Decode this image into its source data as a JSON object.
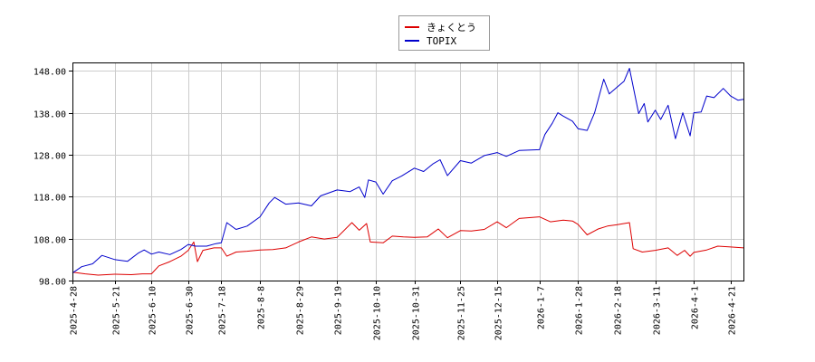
{
  "chart_data": {
    "type": "line",
    "title": "",
    "xlabel": "",
    "ylabel": "",
    "ylim": [
      98.0,
      150.0
    ],
    "y_ticks": [
      "98.00",
      "108.00",
      "118.00",
      "128.00",
      "138.00",
      "148.00"
    ],
    "x_ticks": [
      "2025-4-28",
      "2025-5-21",
      "2025-6-10",
      "2025-6-30",
      "2025-7-18",
      "2025-8-8",
      "2025-8-29",
      "2025-9-19",
      "2025-10-10",
      "2025-10-31",
      "2025-11-25",
      "2025-12-15",
      "2026-1-7",
      "2026-1-28",
      "2026-2-18",
      "2026-3-11",
      "2026-4-1",
      "2026-4-21"
    ],
    "x_range": [
      "2025-4-28",
      "2026-4-28"
    ],
    "grid": true,
    "legend_position": "top-center",
    "series": [
      {
        "name": "きょくとう",
        "color": "#dd0000",
        "points": [
          [
            "2025-4-28",
            100.0
          ],
          [
            "2025-5-5",
            99.6
          ],
          [
            "2025-5-12",
            99.3
          ],
          [
            "2025-5-21",
            99.5
          ],
          [
            "2025-5-30",
            99.4
          ],
          [
            "2025-6-5",
            99.6
          ],
          [
            "2025-6-10",
            99.6
          ],
          [
            "2025-6-14",
            101.5
          ],
          [
            "2025-6-20",
            102.5
          ],
          [
            "2025-6-26",
            103.8
          ],
          [
            "2025-6-30",
            105.2
          ],
          [
            "2025-7-3",
            107.2
          ],
          [
            "2025-7-5",
            102.5
          ],
          [
            "2025-7-8",
            105.2
          ],
          [
            "2025-7-14",
            105.8
          ],
          [
            "2025-7-18",
            105.8
          ],
          [
            "2025-7-21",
            103.8
          ],
          [
            "2025-7-26",
            104.8
          ],
          [
            "2025-8-1",
            105.0
          ],
          [
            "2025-8-8",
            105.3
          ],
          [
            "2025-8-15",
            105.4
          ],
          [
            "2025-8-22",
            105.8
          ],
          [
            "2025-8-29",
            107.2
          ],
          [
            "2025-9-5",
            108.4
          ],
          [
            "2025-9-12",
            107.9
          ],
          [
            "2025-9-19",
            108.3
          ],
          [
            "2025-9-27",
            111.8
          ],
          [
            "2025-10-1",
            110.0
          ],
          [
            "2025-10-5",
            111.6
          ],
          [
            "2025-10-7",
            107.2
          ],
          [
            "2025-10-14",
            107.0
          ],
          [
            "2025-10-19",
            108.6
          ],
          [
            "2025-10-25",
            108.4
          ],
          [
            "2025-10-31",
            108.3
          ],
          [
            "2025-11-7",
            108.4
          ],
          [
            "2025-11-13",
            110.3
          ],
          [
            "2025-11-18",
            108.2
          ],
          [
            "2025-11-25",
            109.9
          ],
          [
            "2025-12-1",
            109.8
          ],
          [
            "2025-12-8",
            110.2
          ],
          [
            "2025-12-15",
            112.0
          ],
          [
            "2025-12-20",
            110.6
          ],
          [
            "2025-12-27",
            112.8
          ],
          [
            "2026-1-7",
            113.2
          ],
          [
            "2026-1-13",
            112.0
          ],
          [
            "2026-1-20",
            112.4
          ],
          [
            "2026-1-25",
            112.2
          ],
          [
            "2026-1-28",
            111.4
          ],
          [
            "2026-2-2",
            108.9
          ],
          [
            "2026-2-8",
            110.3
          ],
          [
            "2026-2-13",
            111.0
          ],
          [
            "2026-2-18",
            111.3
          ],
          [
            "2026-2-25",
            111.8
          ],
          [
            "2026-2-27",
            105.6
          ],
          [
            "2026-3-4",
            104.8
          ],
          [
            "2026-3-11",
            105.2
          ],
          [
            "2026-3-18",
            105.8
          ],
          [
            "2026-3-23",
            104.0
          ],
          [
            "2026-3-27",
            105.2
          ],
          [
            "2026-3-30",
            103.8
          ],
          [
            "2026-4-1",
            104.7
          ],
          [
            "2026-4-8",
            105.3
          ],
          [
            "2026-4-14",
            106.2
          ],
          [
            "2026-4-21",
            106.0
          ],
          [
            "2026-4-28",
            105.8
          ]
        ]
      },
      {
        "name": "TOPIX",
        "color": "#0000cc",
        "points": [
          [
            "2025-4-28",
            99.8
          ],
          [
            "2025-5-3",
            101.3
          ],
          [
            "2025-5-9",
            102.0
          ],
          [
            "2025-5-14",
            104.0
          ],
          [
            "2025-5-21",
            103.0
          ],
          [
            "2025-5-28",
            102.6
          ],
          [
            "2025-6-3",
            104.6
          ],
          [
            "2025-6-6",
            105.3
          ],
          [
            "2025-6-10",
            104.3
          ],
          [
            "2025-6-14",
            104.8
          ],
          [
            "2025-6-20",
            104.2
          ],
          [
            "2025-6-26",
            105.4
          ],
          [
            "2025-6-30",
            106.6
          ],
          [
            "2025-7-4",
            106.2
          ],
          [
            "2025-7-10",
            106.2
          ],
          [
            "2025-7-15",
            106.8
          ],
          [
            "2025-7-18",
            107.0
          ],
          [
            "2025-7-21",
            111.8
          ],
          [
            "2025-7-26",
            110.2
          ],
          [
            "2025-8-1",
            111.0
          ],
          [
            "2025-8-8",
            113.2
          ],
          [
            "2025-8-13",
            116.5
          ],
          [
            "2025-8-16",
            117.8
          ],
          [
            "2025-8-22",
            116.2
          ],
          [
            "2025-8-29",
            116.5
          ],
          [
            "2025-9-5",
            115.8
          ],
          [
            "2025-9-10",
            118.2
          ],
          [
            "2025-9-19",
            119.6
          ],
          [
            "2025-9-26",
            119.2
          ],
          [
            "2025-10-1",
            120.3
          ],
          [
            "2025-10-4",
            117.8
          ],
          [
            "2025-10-6",
            122.0
          ],
          [
            "2025-10-10",
            121.5
          ],
          [
            "2025-10-14",
            118.6
          ],
          [
            "2025-10-19",
            121.8
          ],
          [
            "2025-10-24",
            122.9
          ],
          [
            "2025-10-31",
            124.8
          ],
          [
            "2025-11-5",
            124.0
          ],
          [
            "2025-11-10",
            125.8
          ],
          [
            "2025-11-14",
            126.8
          ],
          [
            "2025-11-18",
            123.0
          ],
          [
            "2025-11-25",
            126.6
          ],
          [
            "2025-12-1",
            126.0
          ],
          [
            "2025-12-8",
            127.8
          ],
          [
            "2025-12-15",
            128.5
          ],
          [
            "2025-12-20",
            127.6
          ],
          [
            "2025-12-27",
            129.0
          ],
          [
            "2026-1-7",
            129.2
          ],
          [
            "2026-1-10",
            132.8
          ],
          [
            "2026-1-14",
            135.5
          ],
          [
            "2026-1-17",
            138.0
          ],
          [
            "2026-1-20",
            137.2
          ],
          [
            "2026-1-25",
            136.0
          ],
          [
            "2026-1-28",
            134.2
          ],
          [
            "2026-2-2",
            133.8
          ],
          [
            "2026-2-6",
            138.0
          ],
          [
            "2026-2-11",
            146.0
          ],
          [
            "2026-2-14",
            142.5
          ],
          [
            "2026-2-18",
            144.0
          ],
          [
            "2026-2-22",
            145.5
          ],
          [
            "2026-2-25",
            148.6
          ],
          [
            "2026-3-2",
            137.8
          ],
          [
            "2026-3-5",
            140.2
          ],
          [
            "2026-3-7",
            135.8
          ],
          [
            "2026-3-11",
            138.6
          ],
          [
            "2026-3-14",
            136.4
          ],
          [
            "2026-3-18",
            139.8
          ],
          [
            "2026-3-22",
            131.8
          ],
          [
            "2026-3-26",
            138.0
          ],
          [
            "2026-3-30",
            132.5
          ],
          [
            "2026-4-1",
            138.0
          ],
          [
            "2026-4-5",
            138.2
          ],
          [
            "2026-4-8",
            142.0
          ],
          [
            "2026-4-12",
            141.6
          ],
          [
            "2026-4-17",
            143.8
          ],
          [
            "2026-4-21",
            142.0
          ],
          [
            "2026-4-25",
            141.0
          ],
          [
            "2026-4-28",
            141.2
          ]
        ]
      }
    ]
  }
}
